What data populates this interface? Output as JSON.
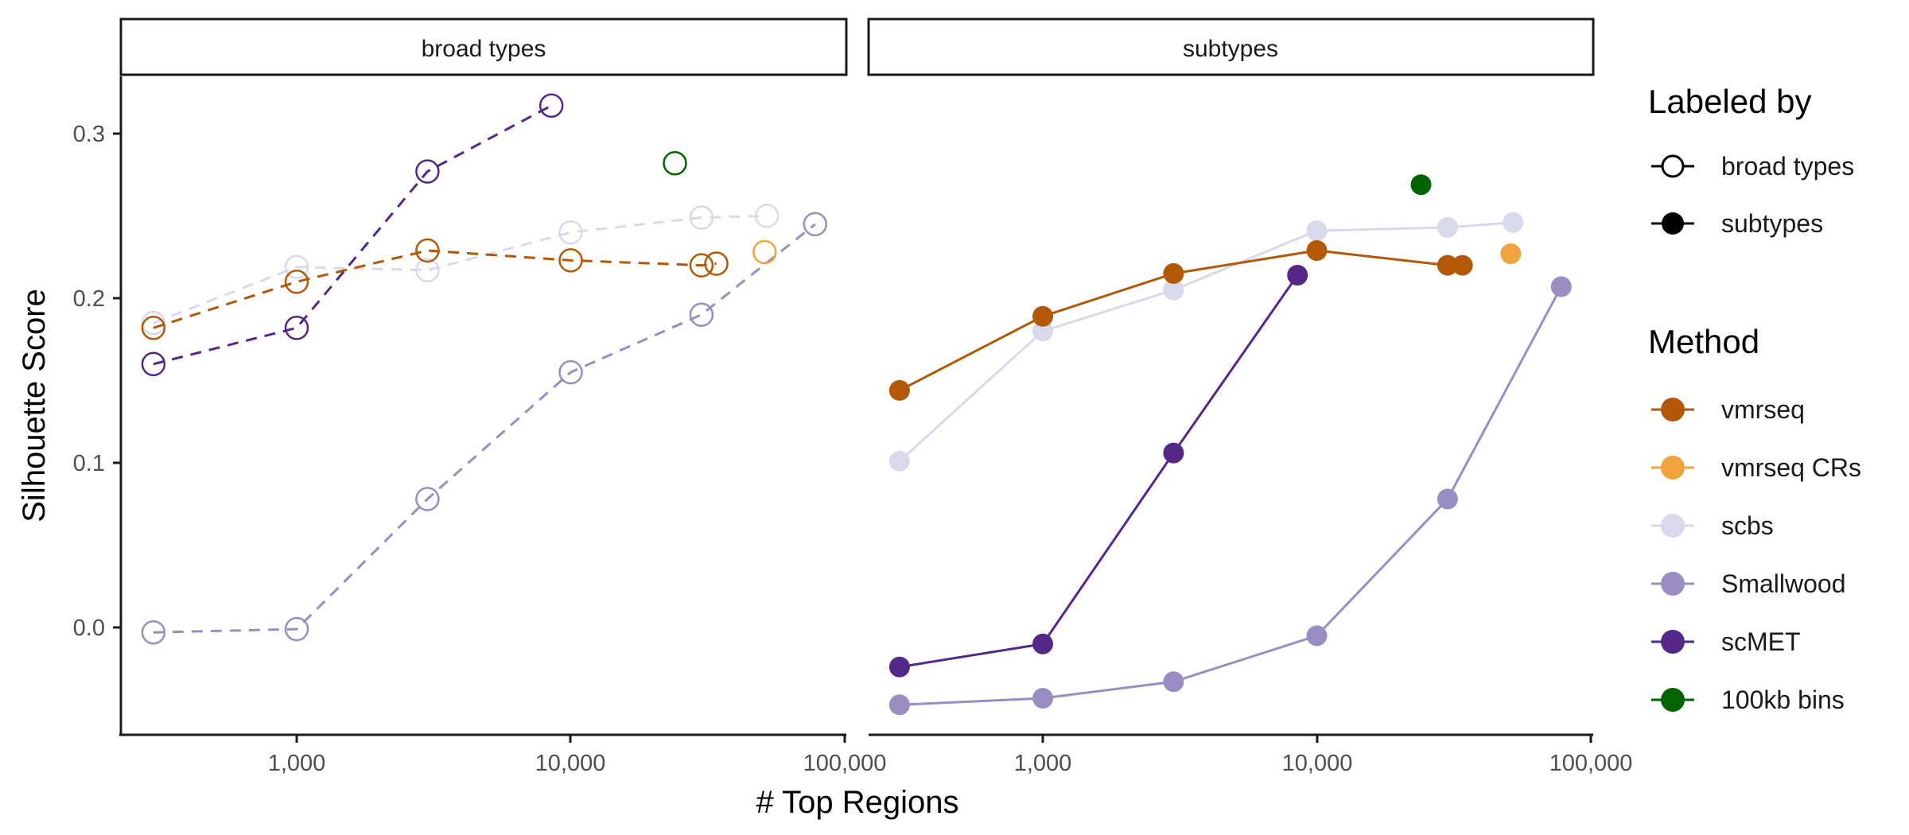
{
  "chart_data": {
    "type": "line",
    "ylabel": "Silhouette Score",
    "xlabel": "# Top Regions",
    "x_scale": "log10",
    "xlim": [
      220,
      100000
    ],
    "ylim": [
      -0.065,
      0.33
    ],
    "x_ticks": [
      1000,
      10000,
      100000
    ],
    "x_tick_labels": [
      "1,000",
      "10,000",
      "100,000"
    ],
    "y_ticks": [
      0.0,
      0.1,
      0.2,
      0.3
    ],
    "y_tick_labels": [
      "0.0",
      "0.1",
      "0.2",
      "0.3"
    ],
    "grid": false,
    "legend_position": "right",
    "panels": [
      {
        "strip": "broad types",
        "series": [
          {
            "method": "Smallwood",
            "x": [
              300,
              1000,
              3000,
              10000,
              30000,
              78000
            ],
            "y": [
              -0.003,
              -0.001,
              0.078,
              0.155,
              0.19,
              0.245
            ]
          },
          {
            "method": "scbs",
            "x": [
              300,
              1000,
              3000,
              10000,
              30000,
              52000
            ],
            "y": [
              0.185,
              0.219,
              0.217,
              0.24,
              0.249,
              0.25
            ]
          },
          {
            "method": "vmrseq",
            "x": [
              300,
              1000,
              3000,
              10000,
              30000,
              34000
            ],
            "y": [
              0.182,
              0.21,
              0.229,
              0.223,
              0.22,
              0.221
            ]
          },
          {
            "method": "scMET",
            "x": [
              300,
              1000,
              3000,
              8500
            ],
            "y": [
              0.16,
              0.182,
              0.277,
              0.317
            ]
          },
          {
            "method": "vmrseq CRs",
            "x": [
              51000
            ],
            "y": [
              0.228
            ]
          },
          {
            "method": "100kb bins",
            "x": [
              24000
            ],
            "y": [
              0.282
            ]
          }
        ]
      },
      {
        "strip": "subtypes",
        "series": [
          {
            "method": "Smallwood",
            "x": [
              300,
              1000,
              3000,
              10000,
              30000,
              78000
            ],
            "y": [
              -0.047,
              -0.043,
              -0.033,
              -0.005,
              0.078,
              0.207
            ]
          },
          {
            "method": "scbs",
            "x": [
              300,
              1000,
              3000,
              10000,
              30000,
              52000
            ],
            "y": [
              0.101,
              0.18,
              0.205,
              0.241,
              0.243,
              0.246
            ]
          },
          {
            "method": "scMET",
            "x": [
              300,
              1000,
              3000,
              8500
            ],
            "y": [
              -0.024,
              -0.01,
              0.106,
              0.214
            ]
          },
          {
            "method": "vmrseq",
            "x": [
              300,
              1000,
              3000,
              10000,
              30000,
              34000
            ],
            "y": [
              0.144,
              0.189,
              0.215,
              0.229,
              0.22,
              0.22
            ]
          },
          {
            "method": "vmrseq CRs",
            "x": [
              51000
            ],
            "y": [
              0.227
            ]
          },
          {
            "method": "100kb bins",
            "x": [
              24000
            ],
            "y": [
              0.269
            ]
          }
        ]
      }
    ],
    "legend_labeled_by": {
      "title": "Labeled by",
      "items": [
        {
          "label": "broad types",
          "style": "open-dashed"
        },
        {
          "label": "subtypes",
          "style": "filled-solid"
        }
      ]
    },
    "legend_method": {
      "title": "Method",
      "items": [
        {
          "label": "vmrseq",
          "color": "#b35806"
        },
        {
          "label": "vmrseq CRs",
          "color": "#f1a340"
        },
        {
          "label": "scbs",
          "color": "#d8daeb"
        },
        {
          "label": "Smallwood",
          "color": "#998ec3"
        },
        {
          "label": "scMET",
          "color": "#542788"
        },
        {
          "label": "100kb bins",
          "color": "#006400"
        }
      ]
    }
  }
}
